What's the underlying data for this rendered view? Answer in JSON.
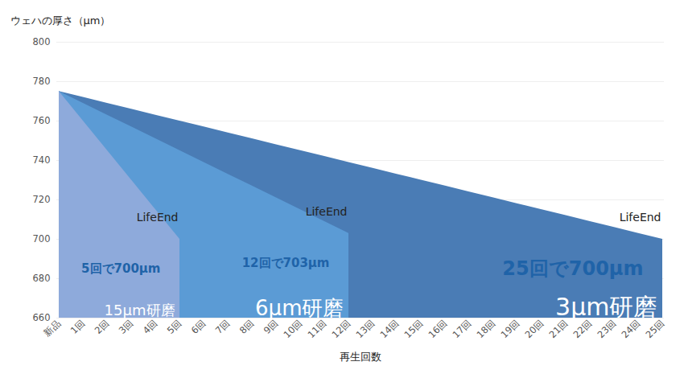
{
  "chart_data": {
    "type": "area",
    "y_label": "ウェハの厚さ（μm）",
    "x_label": "再生回数",
    "categories": [
      "新品",
      "1回",
      "2回",
      "3回",
      "4回",
      "5回",
      "6回",
      "7回",
      "8回",
      "9回",
      "10回",
      "11回",
      "12回",
      "13回",
      "14回",
      "15回",
      "16回",
      "17回",
      "18回",
      "19回",
      "20回",
      "21回",
      "22回",
      "23回",
      "24回",
      "25回"
    ],
    "series": [
      {
        "name": "3μm研磨",
        "color": "#4a7cb5",
        "values": [
          775,
          772,
          769,
          766,
          763,
          760,
          757,
          754,
          751,
          748,
          745,
          742,
          739,
          736,
          733,
          730,
          727,
          724,
          721,
          718,
          715,
          712,
          709,
          706,
          703,
          700
        ],
        "annotations": [
          "LifeEnd",
          "25回で700μm"
        ]
      },
      {
        "name": "6μm研磨",
        "color": "#5b9bd5",
        "values": [
          775,
          769,
          763,
          757,
          751,
          745,
          739,
          733,
          727,
          721,
          715,
          709,
          703,
          null,
          null,
          null,
          null,
          null,
          null,
          null,
          null,
          null,
          null,
          null,
          null,
          null
        ],
        "annotations": [
          "LifeEnd",
          "12回で703μm"
        ]
      },
      {
        "name": "15μm研磨",
        "color": "#8eaadb",
        "values": [
          775,
          760,
          745,
          730,
          715,
          700,
          null,
          null,
          null,
          null,
          null,
          null,
          null,
          null,
          null,
          null,
          null,
          null,
          null,
          null,
          null,
          null,
          null,
          null,
          null,
          null
        ],
        "annotations": [
          "LifeEnd",
          "5回で700μm"
        ]
      }
    ],
    "ylim": [
      660,
      800
    ],
    "yticks": [
      660,
      680,
      700,
      720,
      740,
      760,
      780,
      800
    ],
    "grid": true
  }
}
